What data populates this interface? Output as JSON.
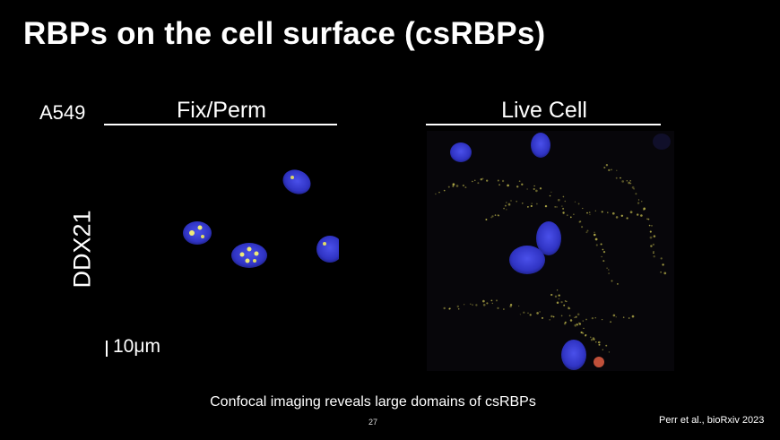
{
  "slide": {
    "title": "RBPs on the cell surface (csRBPs)",
    "cell_line": "A549",
    "panel_left_label": "Fix/Perm",
    "panel_right_label": "Live Cell",
    "row_label": "DDX21",
    "scale_label": "10μm",
    "caption": "Confocal imaging reveals large domains of csRBPs",
    "page_number": "27",
    "citation": "Perr et al., bioRxiv 2023"
  },
  "colors": {
    "background": "#000000",
    "nucleus": "#3a3fd6",
    "nucleolus_signal": "#e8e46a",
    "surface_signal": "#c8c050"
  }
}
